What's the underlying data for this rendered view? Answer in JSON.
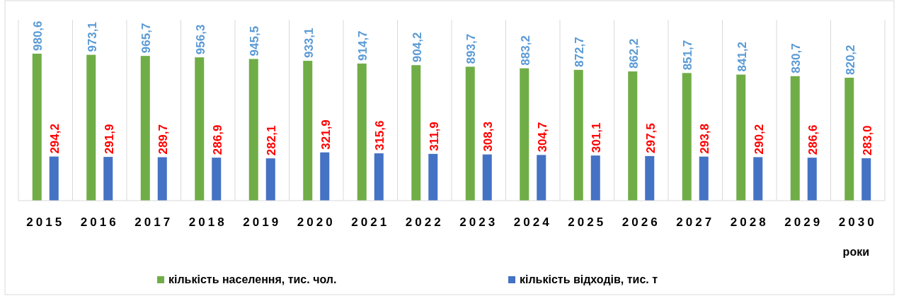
{
  "chart_data": {
    "type": "bar",
    "xlabel": "роки",
    "categories": [
      "2015",
      "2016",
      "2017",
      "2018",
      "2019",
      "2020",
      "2021",
      "2022",
      "2023",
      "2024",
      "2025",
      "2026",
      "2027",
      "2028",
      "2029",
      "2030"
    ],
    "series": [
      {
        "name": "кількість населення, тис. чол.",
        "color": "#70ad47",
        "values": [
          980.6,
          973.1,
          965.7,
          956.3,
          945.5,
          933.1,
          914.7,
          904.2,
          893.7,
          883.2,
          872.7,
          862.2,
          851.7,
          841.2,
          830.7,
          820.2
        ],
        "value_labels": [
          "980,6",
          "973,1",
          "965,7",
          "956,3",
          "945,5",
          "933,1",
          "914,7",
          "904,2",
          "893,7",
          "883,2",
          "872,7",
          "862,2",
          "851,7",
          "841,2",
          "830,7",
          "820,2"
        ]
      },
      {
        "name": "кількість відходів, тис. т",
        "color": "#4472c4",
        "values": [
          294.2,
          291.9,
          289.7,
          286.9,
          282.1,
          321.9,
          315.6,
          311.9,
          308.3,
          304.7,
          301.1,
          297.5,
          293.8,
          290.2,
          286.6,
          283.0
        ],
        "value_labels": [
          "294,2",
          "291,9",
          "289,7",
          "286,9",
          "282,1",
          "321,9",
          "315,6",
          "311,9",
          "308,3",
          "304,7",
          "301,1",
          "297,5",
          "293,8",
          "290,2",
          "286,6",
          "283,0"
        ]
      }
    ],
    "grid": "x",
    "legend": "bottom"
  }
}
